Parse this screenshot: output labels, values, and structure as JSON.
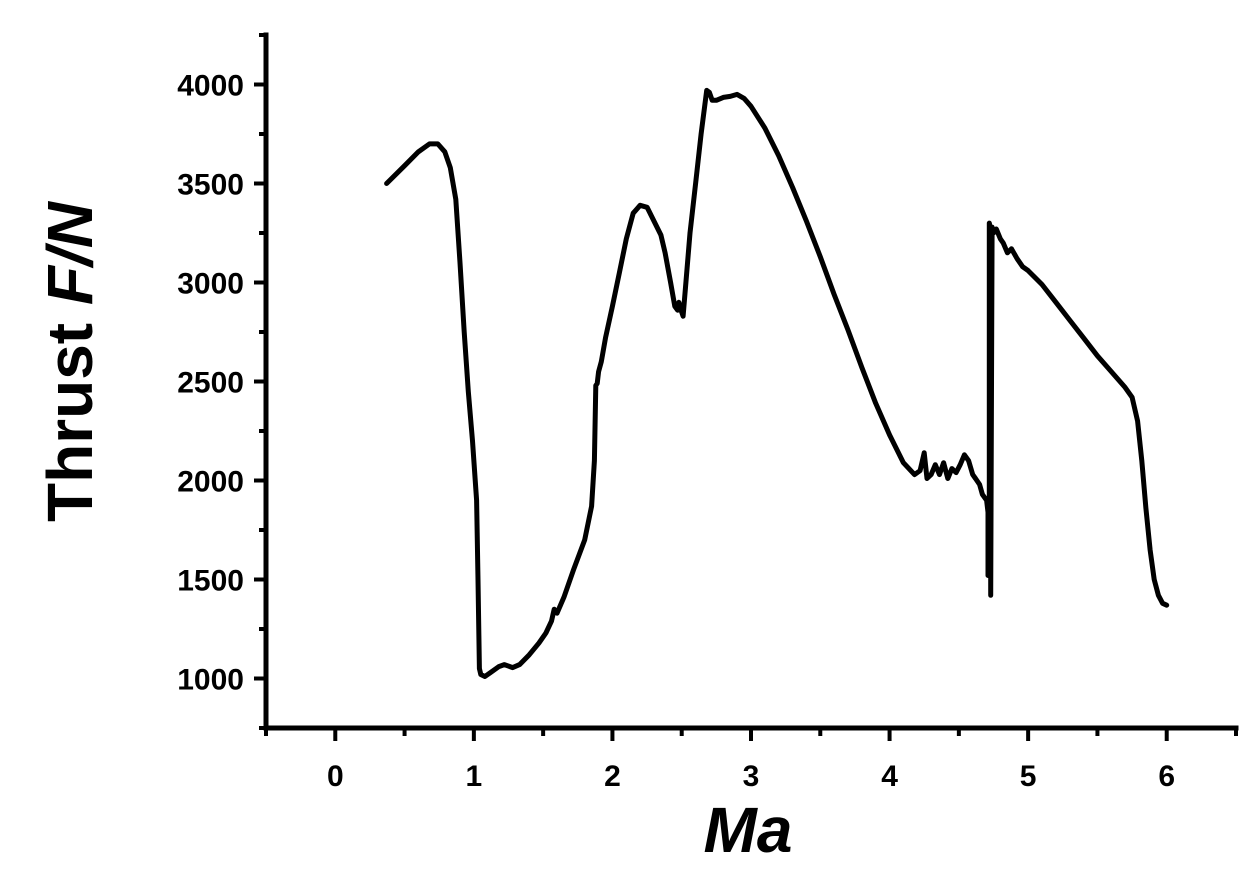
{
  "chart_data": {
    "type": "line",
    "xlabel": "Ma",
    "ylabel_prefix": "Thrust ",
    "ylabel_italic": "F/N",
    "xlim": [
      -0.5,
      6.5
    ],
    "ylim": [
      750,
      4250
    ],
    "xticks": [
      0,
      1,
      2,
      3,
      4,
      5,
      6
    ],
    "xtick_labels": [
      "0",
      "1",
      "2",
      "3",
      "4",
      "5",
      "6"
    ],
    "yticks": [
      1000,
      1500,
      2000,
      2500,
      3000,
      3500,
      4000
    ],
    "ytick_labels": [
      "1000",
      "1500",
      "2000",
      "2500",
      "3000",
      "3500",
      "4000"
    ],
    "grid": false,
    "line_color": "#000000",
    "series": [
      {
        "x": [
          0.37,
          0.5,
          0.6,
          0.68,
          0.74,
          0.79,
          0.83,
          0.87,
          0.9,
          0.93,
          0.96,
          0.99,
          1.02,
          1.03,
          1.04,
          1.05,
          1.08,
          1.12,
          1.18,
          1.22,
          1.28,
          1.33,
          1.4,
          1.47,
          1.52,
          1.56,
          1.58,
          1.6,
          1.65,
          1.72,
          1.8,
          1.85,
          1.87,
          1.88,
          1.89,
          1.9,
          1.92,
          1.93,
          1.95,
          2.0,
          2.05,
          2.1,
          2.15,
          2.2,
          2.25,
          2.3,
          2.35,
          2.38,
          2.42,
          2.45,
          2.47,
          2.48,
          2.5,
          2.51,
          2.53,
          2.56,
          2.6,
          2.64,
          2.68,
          2.7,
          2.72,
          2.75,
          2.8,
          2.85,
          2.9,
          2.95,
          3.0,
          3.1,
          3.2,
          3.3,
          3.4,
          3.5,
          3.6,
          3.7,
          3.8,
          3.9,
          4.0,
          4.1,
          4.18,
          4.22,
          4.25,
          4.27,
          4.3,
          4.33,
          4.36,
          4.39,
          4.42,
          4.45,
          4.48,
          4.51,
          4.54,
          4.57,
          4.6,
          4.62,
          4.65,
          4.67,
          4.7,
          4.71,
          4.71,
          4.72,
          4.72,
          4.73,
          4.73,
          4.74,
          4.75,
          4.77,
          4.8,
          4.82,
          4.85,
          4.88,
          4.92,
          4.96,
          5.0,
          5.1,
          5.2,
          5.3,
          5.4,
          5.5,
          5.6,
          5.7,
          5.75,
          5.79,
          5.82,
          5.85,
          5.88,
          5.91,
          5.94,
          5.97,
          6.0
        ],
        "y": [
          3500,
          3590,
          3660,
          3700,
          3700,
          3660,
          3580,
          3420,
          3100,
          2750,
          2450,
          2200,
          1900,
          1500,
          1050,
          1020,
          1010,
          1030,
          1060,
          1070,
          1055,
          1070,
          1120,
          1180,
          1230,
          1290,
          1350,
          1330,
          1410,
          1550,
          1700,
          1870,
          2100,
          2480,
          2490,
          2550,
          2600,
          2640,
          2720,
          2880,
          3050,
          3220,
          3350,
          3390,
          3380,
          3310,
          3240,
          3150,
          3000,
          2880,
          2860,
          2900,
          2850,
          2830,
          3000,
          3250,
          3500,
          3750,
          3970,
          3960,
          3920,
          3920,
          3935,
          3940,
          3950,
          3930,
          3890,
          3780,
          3640,
          3480,
          3310,
          3130,
          2940,
          2760,
          2570,
          2390,
          2230,
          2090,
          2030,
          2050,
          2140,
          2010,
          2030,
          2080,
          2030,
          2090,
          2010,
          2060,
          2040,
          2080,
          2130,
          2100,
          2030,
          2010,
          1980,
          1930,
          1900,
          1840,
          1520,
          1800,
          3300,
          3270,
          1420,
          3280,
          3250,
          3270,
          3220,
          3200,
          3150,
          3170,
          3120,
          3080,
          3060,
          2990,
          2900,
          2810,
          2720,
          2630,
          2550,
          2470,
          2420,
          2300,
          2100,
          1860,
          1650,
          1500,
          1420,
          1380,
          1370
        ]
      }
    ]
  }
}
